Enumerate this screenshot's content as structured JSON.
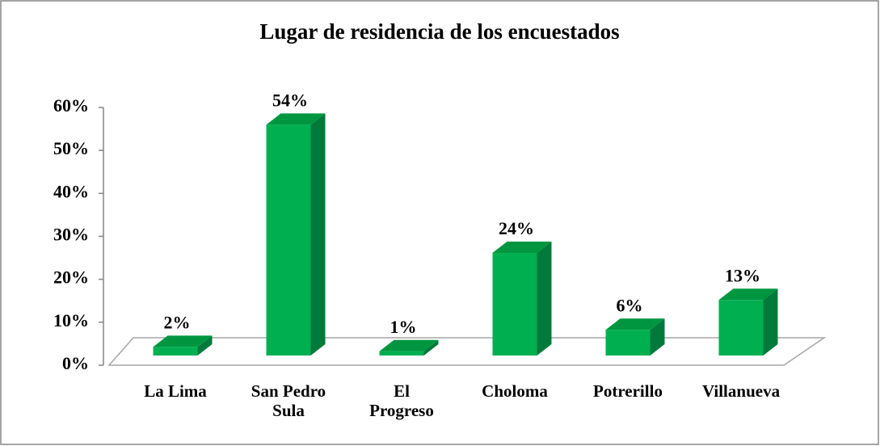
{
  "chart_data": {
    "type": "bar3d",
    "title": "Lugar de residencia de los encuestados",
    "categories": [
      "La Lima",
      "San Pedro Sula",
      "El Progreso",
      "Choloma",
      "Potrerillo",
      "Villanueva"
    ],
    "values": [
      2,
      54,
      1,
      24,
      6,
      13
    ],
    "value_labels": [
      "2%",
      "54%",
      "1%",
      "24%",
      "6%",
      "13%"
    ],
    "color": "#00b050",
    "ylim": [
      0,
      60
    ],
    "yticks": [
      {
        "value": 0,
        "label": "0%"
      },
      {
        "value": 10,
        "label": "10%"
      },
      {
        "value": 20,
        "label": "20%"
      },
      {
        "value": 30,
        "label": "30%"
      },
      {
        "value": 40,
        "label": "40%"
      },
      {
        "value": 50,
        "label": "50%"
      },
      {
        "value": 60,
        "label": "60%"
      }
    ],
    "grid": false
  }
}
